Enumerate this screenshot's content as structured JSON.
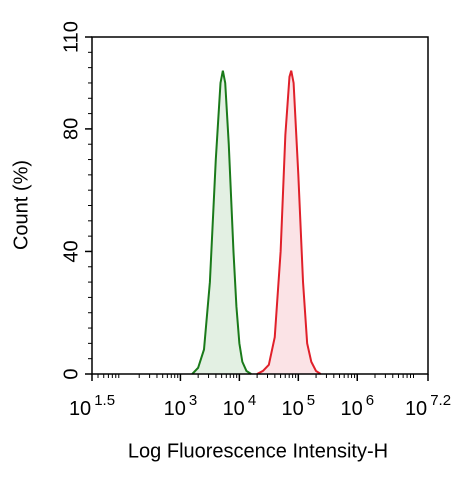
{
  "chart_data": {
    "type": "line",
    "x_label": "Log Fluorescence Intensity-H",
    "y_label": "Count  (%)",
    "log_x": true,
    "xlim": [
      31.6227766,
      15848931.92
    ],
    "xticks": [
      {
        "value": 31.6227766,
        "label": "10",
        "exponent": "1.5"
      },
      {
        "value": 1000,
        "label": "10",
        "exponent": "3"
      },
      {
        "value": 10000,
        "label": "10",
        "exponent": "4"
      },
      {
        "value": 100000,
        "label": "10",
        "exponent": "5"
      },
      {
        "value": 1000000,
        "label": "10",
        "exponent": "6"
      },
      {
        "value": 15848931.92,
        "label": "10",
        "exponent": "7.2"
      }
    ],
    "ylim": [
      0,
      110
    ],
    "yticks": [
      0,
      40,
      80,
      110
    ],
    "series": [
      {
        "color": "#1a7a1a",
        "fill": "#e3f0e3",
        "x": [
          1585,
          1995,
          2512,
          3162,
          3981,
          4786,
          5248,
          5754,
          6607,
          7943,
          8913,
          10000,
          11220,
          13183,
          15849
        ],
        "values": [
          0,
          2,
          8,
          30,
          70,
          95,
          99,
          95,
          75,
          40,
          22,
          10,
          4,
          1,
          0
        ]
      },
      {
        "color": "#e0202a",
        "fill": "#fbe3e6",
        "x": [
          19953,
          25119,
          31623,
          39811,
          50119,
          60256,
          70795,
          75858,
          83176,
          100000,
          120226,
          141254,
          165959,
          199526,
          239883
        ],
        "values": [
          0,
          1,
          3,
          12,
          40,
          78,
          97,
          99,
          95,
          65,
          30,
          10,
          4,
          1,
          0
        ]
      }
    ]
  }
}
